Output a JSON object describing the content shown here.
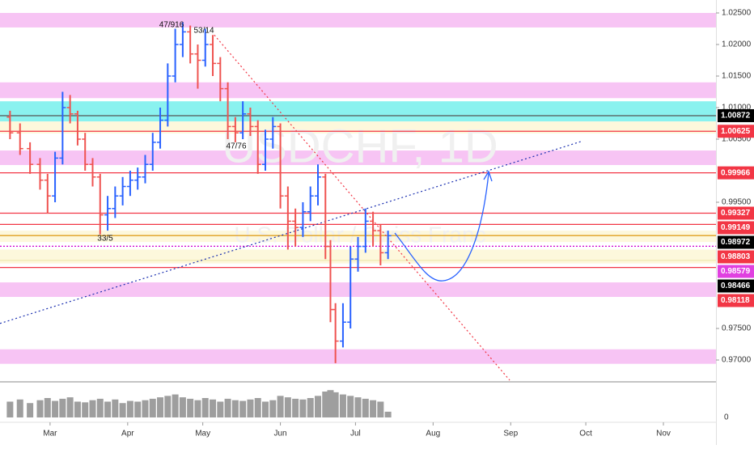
{
  "chart_data": {
    "type": "ohlc",
    "watermark": "USDCHF, 1D",
    "watermark_sub": "U.S. Dollar / Swiss Franc",
    "up_color": "#2962ff",
    "down_color": "#ef5350",
    "x": [
      44,
      48,
      52,
      56,
      59,
      62,
      65,
      68,
      71,
      74,
      77,
      80,
      83,
      86,
      89,
      92,
      95,
      98,
      101,
      104,
      107,
      110,
      113,
      116,
      119,
      122,
      125,
      128,
      131,
      134,
      137,
      140,
      143,
      146,
      149,
      152,
      155,
      158,
      161,
      164,
      167,
      170,
      172,
      174,
      177,
      180,
      183,
      186,
      189,
      192,
      195
    ],
    "open": [
      1.0085,
      1.006,
      1.0035,
      1.001,
      0.9985,
      0.996,
      1.002,
      1.01,
      1.009,
      1.005,
      1.001,
      0.999,
      0.993,
      0.994,
      0.996,
      0.9975,
      0.9985,
      0.999,
      1.001,
      1.0045,
      1.008,
      1.015,
      1.02,
      1.022,
      1.0185,
      1.0175,
      1.02,
      1.017,
      1.013,
      1.007,
      1.006,
      1.009,
      1.007,
      1.001,
      1.005,
      1.007,
      0.996,
      0.992,
      0.991,
      0.9935,
      0.996,
      0.999,
      0.988,
      0.978,
      0.973,
      0.976,
      0.986,
      0.988,
      0.992,
      0.9905,
      0.987
    ],
    "high": [
      1.0095,
      1.0075,
      1.0045,
      1.002,
      0.9995,
      1.003,
      1.0125,
      1.012,
      1.0095,
      1.006,
      1.002,
      0.9995,
      0.996,
      0.9975,
      0.999,
      1.0,
      1.0005,
      1.0025,
      1.006,
      1.01,
      1.017,
      1.0225,
      1.0235,
      1.023,
      1.02,
      1.0225,
      1.0215,
      1.018,
      1.014,
      1.0085,
      1.011,
      1.01,
      1.008,
      1.0065,
      1.0085,
      1.0075,
      0.9975,
      0.994,
      0.995,
      0.9975,
      1.001,
      0.9995,
      0.989,
      0.979,
      0.979,
      0.988,
      0.9895,
      0.994,
      0.9935,
      0.9915,
      0.9905
    ],
    "low": [
      1.005,
      1.0025,
      0.9995,
      0.997,
      0.9932,
      0.995,
      1.001,
      1.0075,
      1.004,
      1.0,
      0.9975,
      0.9899,
      0.9905,
      0.9925,
      0.9945,
      0.996,
      0.997,
      0.998,
      1.0,
      1.0035,
      1.007,
      1.014,
      1.018,
      1.017,
      1.013,
      1.0165,
      1.015,
      1.011,
      1.005,
      1.0045,
      1.005,
      1.0055,
      0.9995,
      1.0,
      1.0035,
      0.994,
      0.9875,
      0.988,
      0.9895,
      0.992,
      0.9945,
      0.986,
      0.976,
      0.9695,
      0.972,
      0.975,
      0.984,
      0.987,
      0.988,
      0.985,
      0.986
    ],
    "close": [
      1.006,
      1.0035,
      1.001,
      0.9985,
      0.996,
      1.002,
      1.01,
      1.009,
      1.005,
      1.001,
      0.999,
      0.993,
      0.994,
      0.996,
      0.9975,
      0.9985,
      0.999,
      1.001,
      1.0045,
      1.008,
      1.015,
      1.02,
      1.022,
      1.0185,
      1.0175,
      1.02,
      1.017,
      1.013,
      1.007,
      1.006,
      1.009,
      1.007,
      1.001,
      1.005,
      1.007,
      0.996,
      0.992,
      0.991,
      0.9935,
      0.996,
      0.999,
      0.988,
      0.978,
      0.973,
      0.976,
      0.986,
      0.988,
      0.992,
      0.9905,
      0.987,
      0.9897
    ],
    "volume": [
      22,
      25,
      20,
      24,
      27,
      23,
      26,
      28,
      22,
      21,
      24,
      26,
      22,
      25,
      20,
      23,
      22,
      24,
      26,
      28,
      30,
      32,
      28,
      26,
      24,
      27,
      25,
      22,
      26,
      24,
      23,
      25,
      27,
      22,
      24,
      30,
      28,
      26,
      25,
      27,
      30,
      36,
      38,
      35,
      32,
      30,
      28,
      26,
      24,
      22,
      8
    ],
    "volume_color": "#9e9e9e",
    "volume_ylim": [
      0,
      45
    ],
    "volume_yticks": [
      0
    ],
    "xlim": [
      40,
      326
    ],
    "xticks": [
      {
        "value": 60,
        "label": "Mar"
      },
      {
        "value": 91,
        "label": "Apr"
      },
      {
        "value": 121,
        "label": "May"
      },
      {
        "value": 152,
        "label": "Jun"
      },
      {
        "value": 182,
        "label": "Jul"
      },
      {
        "value": 213,
        "label": "Aug"
      },
      {
        "value": 244,
        "label": "Sep"
      },
      {
        "value": 274,
        "label": "Oct"
      },
      {
        "value": 305,
        "label": "Nov"
      }
    ],
    "ylim": [
      0.96654,
      1.02705
    ],
    "yticks": [
      {
        "value": 1.025,
        "label": "1.02500"
      },
      {
        "value": 1.02,
        "label": "1.02000"
      },
      {
        "value": 1.015,
        "label": "1.01500"
      },
      {
        "value": 1.01,
        "label": "1.01000"
      },
      {
        "value": 1.005,
        "label": "1.00500"
      },
      {
        "value": 0.995,
        "label": "0.99500"
      },
      {
        "value": 0.975,
        "label": "0.97500"
      },
      {
        "value": 0.97,
        "label": "0.97000"
      }
    ],
    "zones": [
      {
        "range": [
          1.0227,
          1.025
        ],
        "color": "#f7c4f4"
      },
      {
        "range": [
          1.0115,
          1.014
        ],
        "color": "#f7c4f4"
      },
      {
        "range": [
          1.0078,
          1.011
        ],
        "color": "#8af2ef"
      },
      {
        "range": [
          1.0059,
          1.0078
        ],
        "color": "#fdf8dc"
      },
      {
        "range": [
          1.0009,
          1.0032
        ],
        "color": "#f7c4f4"
      },
      {
        "range": [
          0.9887,
          0.9905
        ],
        "color": "#fdf8dc"
      },
      {
        "range": [
          0.9853,
          0.9875
        ],
        "color": "#fdf8dc"
      },
      {
        "range": [
          0.98,
          0.9823
        ],
        "color": "#f7c4f4"
      },
      {
        "range": [
          0.9694,
          0.9717
        ],
        "color": "#f7c4f4"
      }
    ],
    "levels": [
      {
        "value": 1.00872,
        "color": "#000000",
        "line": "#555555"
      },
      {
        "value": 1.00625,
        "color": "#f23645",
        "line": "#f23645"
      },
      {
        "value": 0.99966,
        "color": "#f23645",
        "line": "#f23645"
      },
      {
        "value": 0.99327,
        "color": "#f23645",
        "line": "#f23645"
      },
      {
        "value": 0.99149,
        "color": "#f23645",
        "line": "#f23645"
      },
      {
        "value": 0.98972,
        "color": "#000000",
        "line": "#e0a020"
      },
      {
        "value": 0.98803,
        "color": "#f23645",
        "line": "#d000d0"
      },
      {
        "value": 0.98579,
        "color": "#e040e0",
        "line": "#f0e8b0"
      },
      {
        "value": 0.98466,
        "color": "#000000",
        "line": "#f23645"
      },
      {
        "value": 0.98118,
        "color": "#f23645",
        "line": "#f7c4f4"
      }
    ],
    "trendlines": [
      {
        "x": [
          125.6,
          243.6
        ],
        "y": [
          1.0215,
          0.9668
        ],
        "color": "#f23645"
      },
      {
        "x": [
          40,
          272.7
        ],
        "y": [
          0.9758,
          1.0047
        ],
        "color": "#1a2fb0"
      }
    ],
    "annotations": [
      "47/916",
      "53/14",
      "47/76",
      "33/5"
    ]
  }
}
